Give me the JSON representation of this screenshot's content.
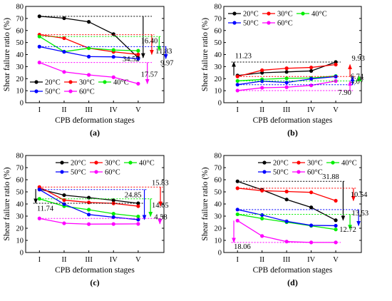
{
  "figure": {
    "ylabel": "Shear failure ratio (%)",
    "xlabel": "CPB deformation stages"
  },
  "chart_data": [
    {
      "type": "line",
      "panel_label": "(a)",
      "categories": [
        "I",
        "II",
        "III",
        "IV",
        "V"
      ],
      "ylim": [
        0,
        80
      ],
      "yticks": [
        0,
        10,
        20,
        30,
        40,
        50,
        60,
        70,
        80
      ],
      "xlabel": "CPB deformation stages",
      "ylabel": "Shear failure ratio (%)",
      "legend_position": "bottom-left",
      "legend_rows": [
        [
          "20°C",
          "30°C",
          "40°C"
        ],
        [
          "50°C",
          "60°C"
        ]
      ],
      "series": [
        {
          "name": "20°C",
          "color": "#000000",
          "values": [
            71.8,
            70.2,
            67.2,
            57.0,
            37.3
          ]
        },
        {
          "name": "30°C",
          "color": "#ff0000",
          "values": [
            56.5,
            53.6,
            45.3,
            42.3,
            40.1
          ]
        },
        {
          "name": "40°C",
          "color": "#00ee00",
          "values": [
            55.0,
            42.4,
            45.3,
            43.8,
            43.2
          ]
        },
        {
          "name": "50°C",
          "color": "#0000ff",
          "values": [
            46.6,
            42.3,
            38.3,
            38.1,
            36.6
          ]
        },
        {
          "name": "60°C",
          "color": "#ff00ff",
          "values": [
            33.4,
            25.6,
            23.1,
            21.2,
            15.8
          ]
        }
      ],
      "annotations": [
        {
          "text": "34.52",
          "series": "20°C"
        },
        {
          "text": "16.40",
          "series": "30°C"
        },
        {
          "text": "11.83",
          "series": "40°C"
        },
        {
          "text": "9.97",
          "series": "50°C"
        },
        {
          "text": "17.57",
          "series": "60°C"
        }
      ]
    },
    {
      "type": "line",
      "panel_label": "(b)",
      "categories": [
        "I",
        "II",
        "III",
        "IV",
        "V"
      ],
      "ylim": [
        0,
        80
      ],
      "yticks": [
        0,
        10,
        20,
        30,
        40,
        50,
        60,
        70,
        80
      ],
      "xlabel": "CPB deformation stages",
      "ylabel": "Shear failure ratio (%)",
      "legend_position": "top-left",
      "legend_rows": [
        [
          "20°C",
          "30°C",
          "40°C"
        ],
        [
          "50°C",
          "60°C"
        ]
      ],
      "series": [
        {
          "name": "20°C",
          "color": "#000000",
          "values": [
            22.6,
            24.9,
            25.6,
            26.4,
            33.8
          ]
        },
        {
          "name": "30°C",
          "color": "#ff0000",
          "values": [
            21.8,
            27.0,
            28.6,
            29.3,
            31.7
          ]
        },
        {
          "name": "40°C",
          "color": "#00ee00",
          "values": [
            18.1,
            19.4,
            20.3,
            20.5,
            22.2
          ]
        },
        {
          "name": "50°C",
          "color": "#0000ff",
          "values": [
            15.0,
            17.9,
            16.8,
            19.8,
            21.7
          ]
        },
        {
          "name": "60°C",
          "color": "#ff00ff",
          "values": [
            10.1,
            12.4,
            12.9,
            14.4,
            18.0
          ]
        }
      ],
      "annotations": [
        {
          "text": "11.23",
          "series": "20°C"
        },
        {
          "text": "9.93",
          "series": "30°C"
        },
        {
          "text": "4.07",
          "series": "40°C"
        },
        {
          "text": "6.74",
          "series": "50°C"
        },
        {
          "text": "7.90",
          "series": "60°C"
        }
      ]
    },
    {
      "type": "line",
      "panel_label": "(c)",
      "categories": [
        "I",
        "II",
        "III",
        "IV",
        "V"
      ],
      "ylim": [
        0,
        80
      ],
      "yticks": [
        0,
        10,
        20,
        30,
        40,
        50,
        60,
        70,
        80
      ],
      "xlabel": "CPB deformation stages",
      "ylabel": "Shear failure ratio (%)",
      "legend_position": "top-right",
      "legend_rows": [
        [
          "20°C",
          "30°C",
          "40°C"
        ],
        [
          "50°C",
          "60°C"
        ]
      ],
      "series": [
        {
          "name": "20°C",
          "color": "#000000",
          "values": [
            52.3,
            47.3,
            45.2,
            43.1,
            40.6
          ]
        },
        {
          "name": "30°C",
          "color": "#ff0000",
          "values": [
            54.0,
            43.2,
            41.3,
            40.5,
            38.2
          ]
        },
        {
          "name": "40°C",
          "color": "#00ee00",
          "values": [
            44.3,
            38.2,
            35.3,
            32.0,
            29.7
          ]
        },
        {
          "name": "50°C",
          "color": "#0000ff",
          "values": [
            51.9,
            39.9,
            31.3,
            29.1,
            27.1
          ]
        },
        {
          "name": "60°C",
          "color": "#ff00ff",
          "values": [
            28.1,
            24.1,
            23.4,
            23.5,
            23.6
          ]
        }
      ],
      "annotations": [
        {
          "text": "11.74",
          "series": "20°C"
        },
        {
          "text": "15.83",
          "series": "30°C"
        },
        {
          "text": "14.65",
          "series": "40°C"
        },
        {
          "text": "24.85",
          "series": "50°C"
        },
        {
          "text": "4.58",
          "series": "60°C"
        }
      ]
    },
    {
      "type": "line",
      "panel_label": "(d)",
      "categories": [
        "I",
        "II",
        "III",
        "IV",
        "V"
      ],
      "ylim": [
        0,
        80
      ],
      "yticks": [
        0,
        10,
        20,
        30,
        40,
        50,
        60,
        70,
        80
      ],
      "xlabel": "CPB deformation stages",
      "ylabel": "Shear failure ratio (%)",
      "legend_position": "top-right",
      "legend_rows": [
        [
          "20°C",
          "30°C",
          "40°C"
        ],
        [
          "50°C",
          "60°C"
        ]
      ],
      "series": [
        {
          "name": "20°C",
          "color": "#000000",
          "values": [
            58.7,
            51.7,
            43.7,
            37.2,
            26.6
          ]
        },
        {
          "name": "30°C",
          "color": "#ff0000",
          "values": [
            53.0,
            51.0,
            50.3,
            49.6,
            42.7
          ]
        },
        {
          "name": "40°C",
          "color": "#00ee00",
          "values": [
            31.5,
            28.0,
            25.0,
            22.0,
            19.0
          ]
        },
        {
          "name": "50°C",
          "color": "#0000ff",
          "values": [
            35.4,
            30.9,
            25.7,
            22.4,
            22.1
          ]
        },
        {
          "name": "60°C",
          "color": "#ff00ff",
          "values": [
            26.3,
            13.6,
            9.0,
            8.3,
            8.3
          ]
        }
      ],
      "annotations": [
        {
          "text": "31.88",
          "series": "20°C"
        },
        {
          "text": "10.54",
          "series": "30°C"
        },
        {
          "text": "12.72",
          "series": "40°C"
        },
        {
          "text": "13.53",
          "series": "50°C"
        },
        {
          "text": "18.06",
          "series": "60°C"
        }
      ]
    }
  ]
}
